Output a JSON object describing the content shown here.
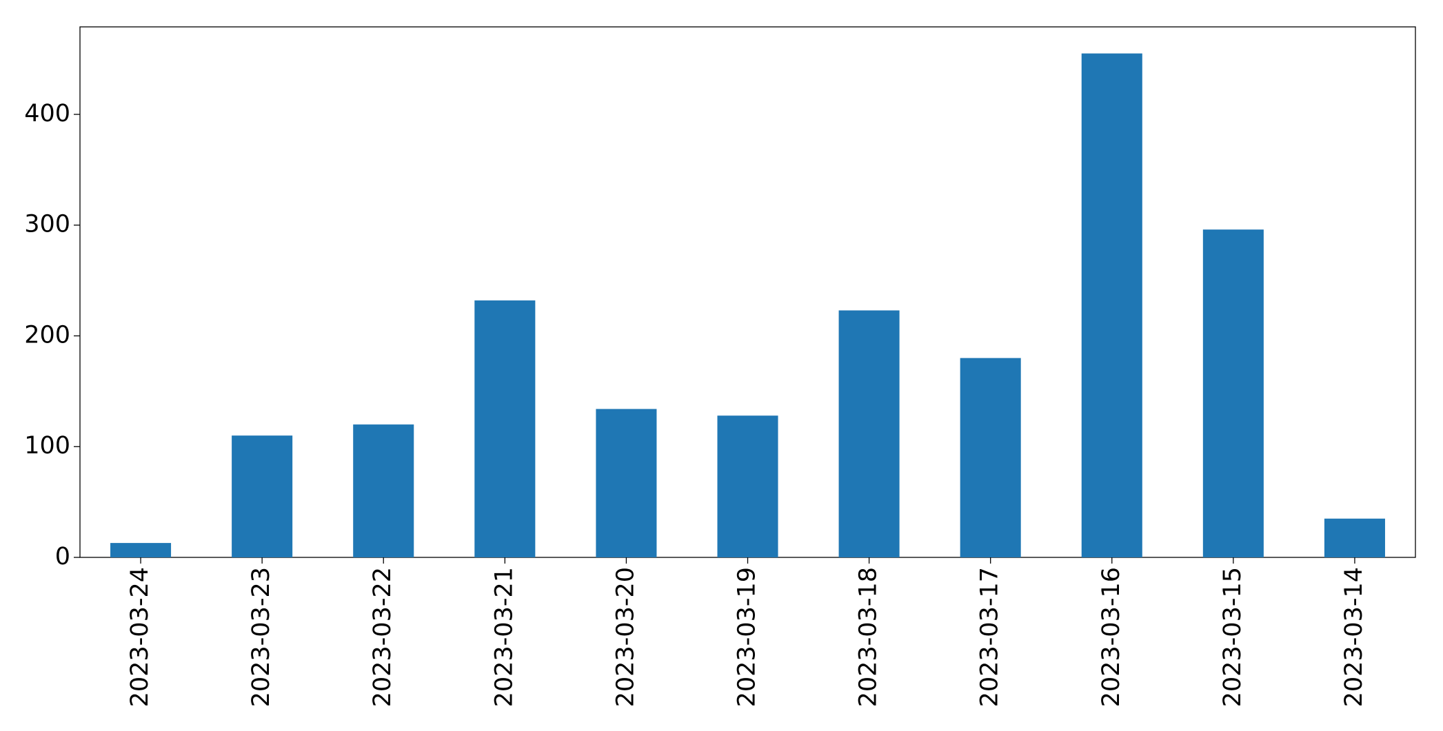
{
  "chart_data": {
    "type": "bar",
    "categories": [
      "2023-03-24",
      "2023-03-23",
      "2023-03-22",
      "2023-03-21",
      "2023-03-20",
      "2023-03-19",
      "2023-03-18",
      "2023-03-17",
      "2023-03-16",
      "2023-03-15",
      "2023-03-14"
    ],
    "values": [
      13,
      110,
      120,
      232,
      134,
      128,
      223,
      180,
      455,
      296,
      35
    ],
    "color": "#1f77b4",
    "ylim": [
      0,
      479
    ],
    "yticks": [
      0,
      100,
      200,
      300,
      400
    ],
    "grid": false
  }
}
